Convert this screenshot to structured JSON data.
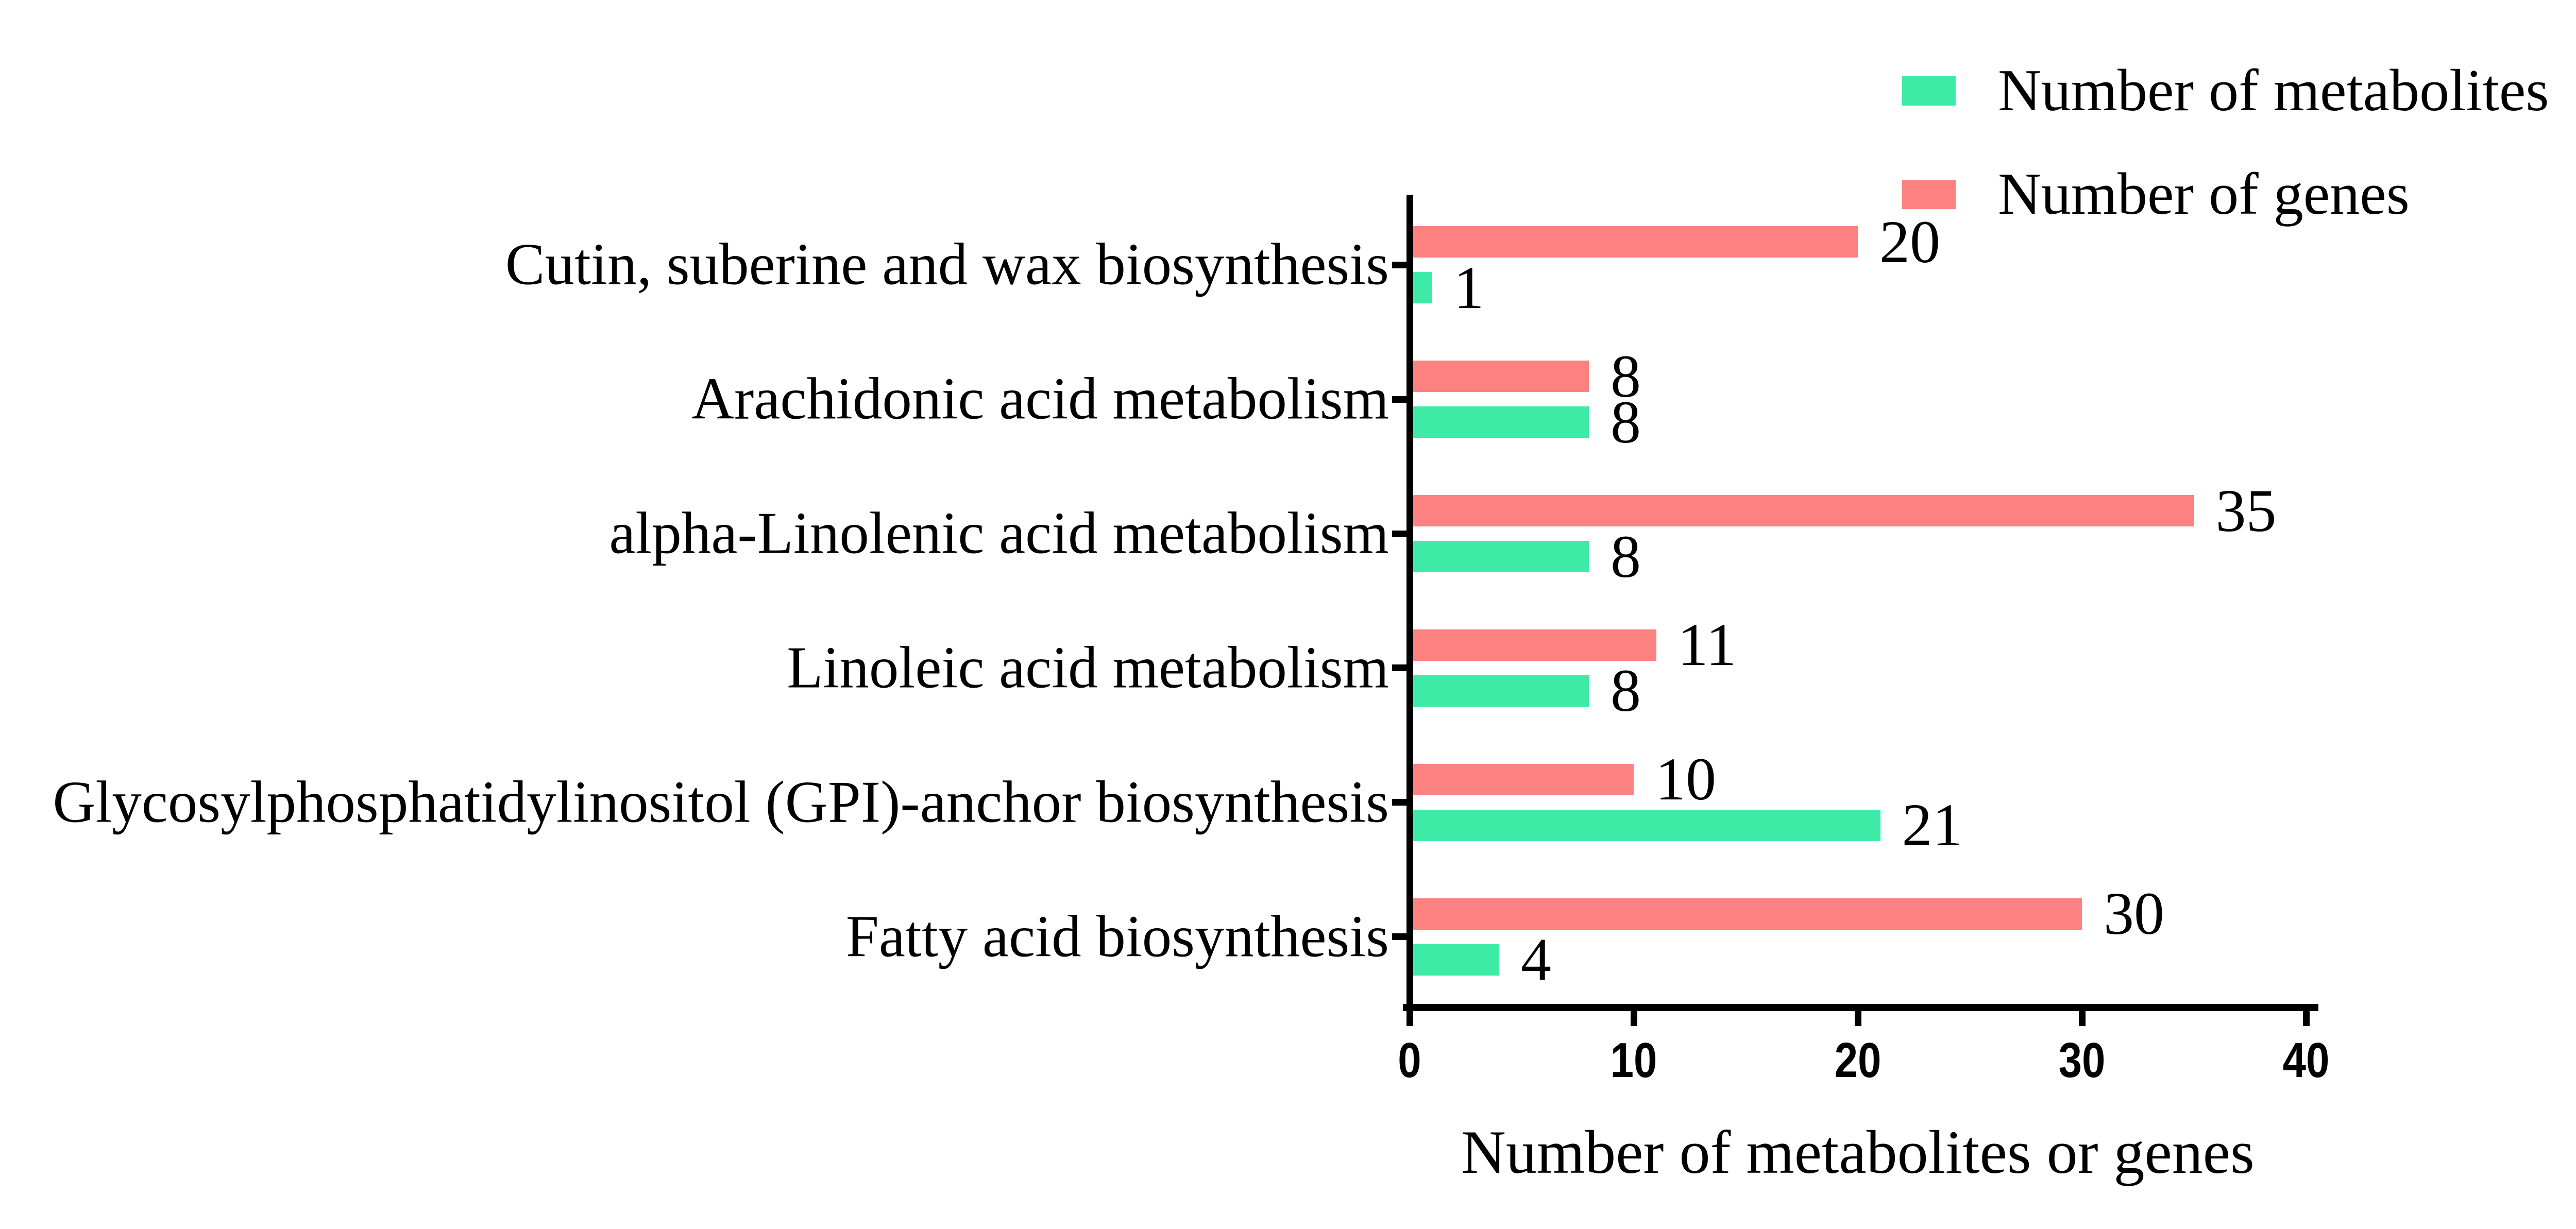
{
  "legend": {
    "items": [
      {
        "label": "Number of metabolites",
        "color": "#3EEBA6"
      },
      {
        "label": "Number of genes",
        "color": "#FB8281"
      }
    ]
  },
  "chart_data": {
    "type": "bar",
    "orientation": "horizontal",
    "title": "",
    "xlabel": "Number of metabolites or genes",
    "ylabel": "",
    "xlim": [
      0,
      40
    ],
    "xticks": [
      "0",
      "10",
      "20",
      "30",
      "40"
    ],
    "grid": false,
    "legend_position": "top-right",
    "categories": [
      "Cutin, suberine and wax biosynthesis",
      "Arachidonic acid metabolism",
      "alpha-Linolenic acid metabolism",
      "Linoleic acid metabolism",
      "Glycosylphosphatidylinositol (GPI)-anchor biosynthesis",
      "Fatty acid biosynthesis"
    ],
    "series": [
      {
        "name": "Number of genes",
        "color": "#FB8281",
        "values": [
          20,
          8,
          35,
          11,
          10,
          30
        ]
      },
      {
        "name": "Number of metabolites",
        "color": "#3EEBA6",
        "values": [
          1,
          8,
          8,
          8,
          21,
          4
        ]
      }
    ]
  }
}
